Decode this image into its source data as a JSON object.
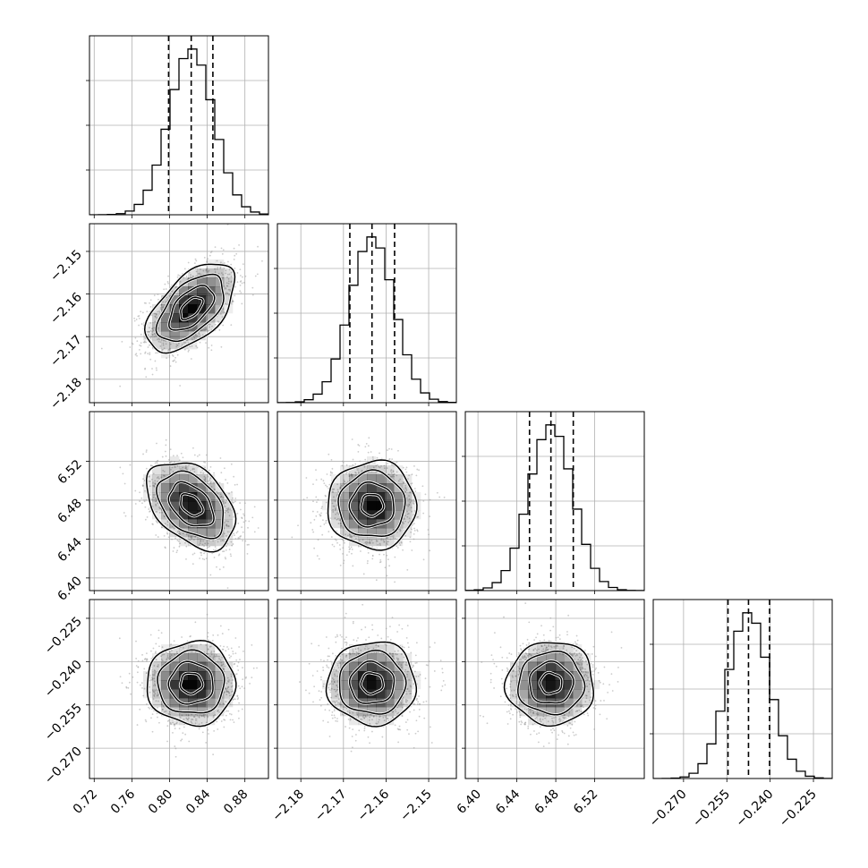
{
  "chart_data": {
    "type": "corner",
    "n_params": 4,
    "grid": true,
    "colors": {
      "line": "#000000",
      "grid": "#b0b0b0",
      "scatter": "#9a9a9a",
      "density": "#000000"
    },
    "params": [
      {
        "range": [
          0.715,
          0.905
        ],
        "ticks": [
          0.72,
          0.76,
          0.8,
          0.84,
          0.88
        ],
        "tick_labels": [
          "0.72",
          "0.76",
          "0.80",
          "0.84",
          "0.88"
        ],
        "quantiles": [
          0.799,
          0.823,
          0.846
        ],
        "mean": 0.823,
        "sd": 0.0235
      },
      {
        "range": [
          -2.1855,
          -2.1435
        ],
        "ticks": [
          -2.18,
          -2.17,
          -2.16,
          -2.15
        ],
        "tick_labels": [
          "−2.18",
          "−2.17",
          "−2.16",
          "−2.15"
        ],
        "quantiles": [
          -2.1685,
          -2.1633,
          -2.158
        ],
        "mean": -2.1633,
        "sd": 0.0052
      },
      {
        "range": [
          6.387,
          6.571
        ],
        "ticks": [
          6.4,
          6.44,
          6.48,
          6.52
        ],
        "tick_labels": [
          "6.40",
          "6.44",
          "6.48",
          "6.52"
        ],
        "quantiles": [
          6.453,
          6.475,
          6.498
        ],
        "mean": 6.475,
        "sd": 0.0225
      },
      {
        "range": [
          -0.2805,
          -0.2185
        ],
        "ticks": [
          -0.27,
          -0.255,
          -0.24,
          -0.225
        ],
        "tick_labels": [
          "−0.270",
          "−0.255",
          "−0.240",
          "−0.225"
        ],
        "quantiles": [
          -0.2546,
          -0.2475,
          -0.2402
        ],
        "mean": -0.2475,
        "sd": 0.0072
      }
    ],
    "correlations": [
      [
        1.0,
        0.55,
        -0.4,
        0.0
      ],
      [
        0.55,
        1.0,
        0.0,
        0.0
      ],
      [
        -0.4,
        0.0,
        1.0,
        0.0
      ],
      [
        0.0,
        0.0,
        0.0,
        1.0
      ]
    ],
    "contour_levels_sigma": [
      0.5,
      1.0,
      1.5,
      2.0
    ],
    "histogram_bins": 20
  }
}
